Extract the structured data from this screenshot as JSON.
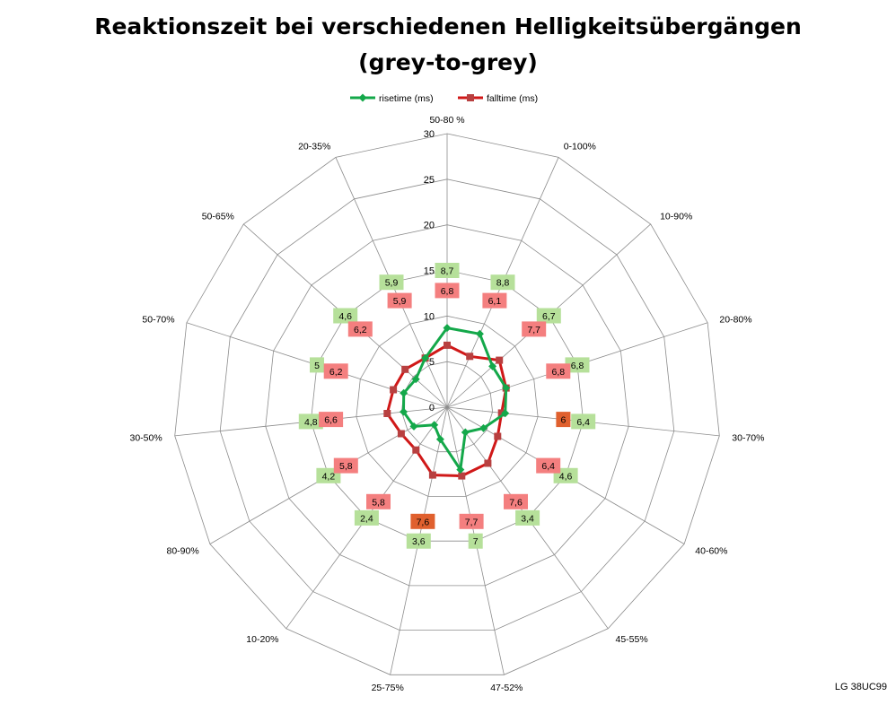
{
  "title": {
    "line1": "Reaktionszeit bei verschiedenen Helligkeitsübergängen",
    "line2": "(grey-to-grey)"
  },
  "watermark": "LG 38UC99",
  "colors": {
    "rise_line": "#14a84a",
    "fall_line": "#d01818",
    "rise_label_bg": "#b6e09a",
    "fall_label_bg": "#f47f7f",
    "fall_label_bg_dark": "#e0602e",
    "grid": "#8c8c8c"
  },
  "chart_data": {
    "type": "radar",
    "categories": [
      "50-80 %",
      "0-100%",
      "10-90%",
      "20-80%",
      "30-70%",
      "40-60%",
      "45-55%",
      "47-52%",
      "25-75%",
      "10-20%",
      "80-90%",
      "30-50%",
      "50-70%",
      "50-65%",
      "20-35%"
    ],
    "rlim": [
      0,
      30
    ],
    "ticks": [
      "0",
      "5",
      "10",
      "15",
      "20",
      "25",
      "30"
    ],
    "grid": true,
    "legend_position": "top",
    "series": [
      {
        "name": "risetime (ms)",
        "color": "#14a84a",
        "marker": "diamond",
        "values": [
          8.7,
          8.8,
          6.7,
          6.8,
          6.4,
          4.6,
          3.4,
          7,
          3.6,
          2.4,
          4.2,
          4.8,
          5,
          4.6,
          5.9
        ],
        "labels": [
          "8,7",
          "8,8",
          "6,7",
          "6,8",
          "6,4",
          "4,6",
          "3,4",
          "7",
          "3,6",
          "2,4",
          "4,2",
          "4,8",
          "5",
          "4,6",
          "5,9"
        ]
      },
      {
        "name": "falltime (ms)",
        "color": "#d01818",
        "marker": "square",
        "values": [
          6.8,
          6.1,
          7.7,
          6.8,
          6,
          6.4,
          7.6,
          7.7,
          7.6,
          5.8,
          5.8,
          6.6,
          6.2,
          6.2,
          5.9
        ],
        "labels": [
          "6,8",
          "6,1",
          "7,7",
          "6,8",
          "6",
          "6,4",
          "7,6",
          "7,7",
          "7,6",
          "5,8",
          "5,8",
          "6,6",
          "6,2",
          "6,2",
          "5,9"
        ]
      }
    ]
  }
}
